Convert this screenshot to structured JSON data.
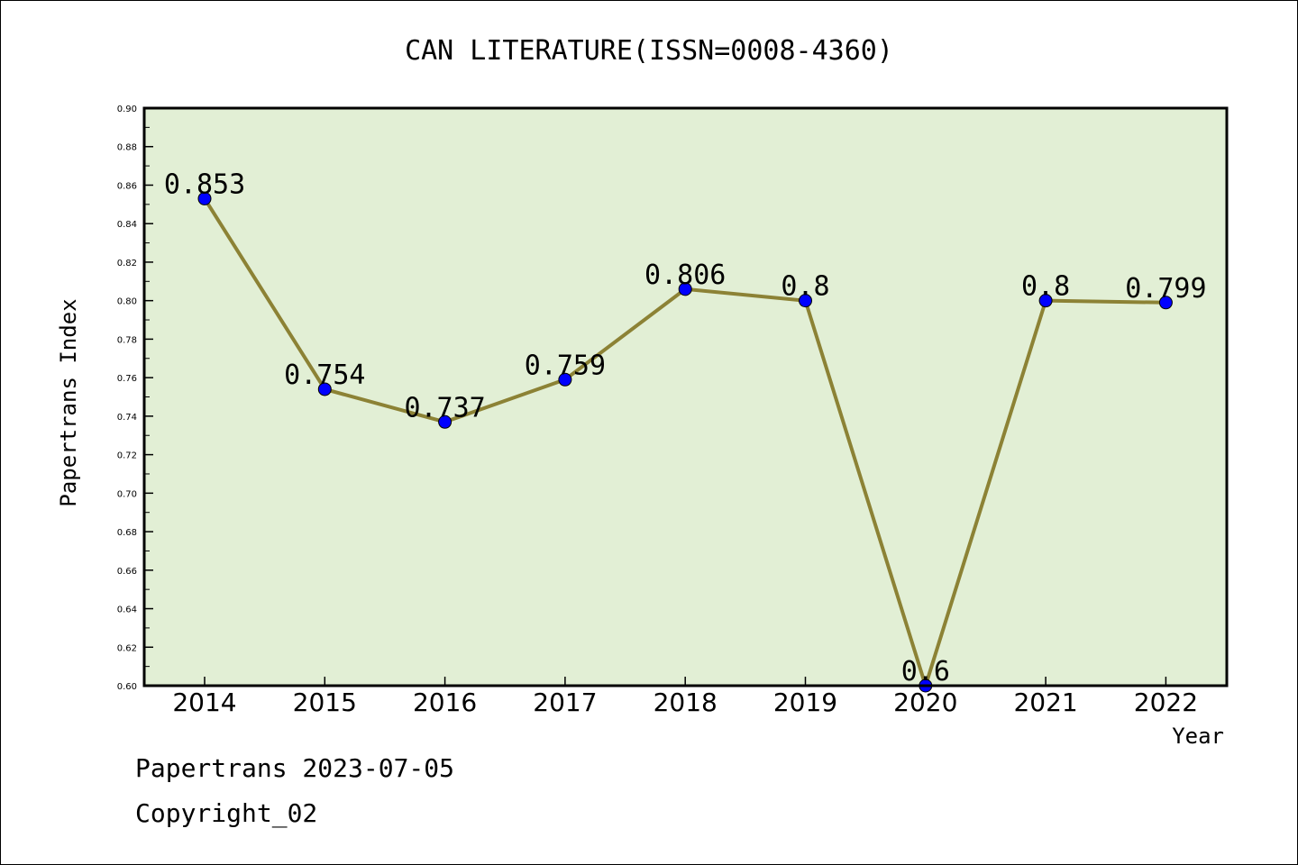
{
  "chart_data": {
    "type": "line",
    "title": "CAN LITERATURE(ISSN=0008-4360)",
    "xlabel": "Year",
    "ylabel": "Papertrans Index",
    "categories": [
      "2014",
      "2015",
      "2016",
      "2017",
      "2018",
      "2019",
      "2020",
      "2021",
      "2022"
    ],
    "series": [
      {
        "values": [
          0.853,
          0.754,
          0.737,
          0.759,
          0.806,
          0.8,
          0.6,
          0.8,
          0.799
        ],
        "labels": [
          "0.853",
          "0.754",
          "0.737",
          "0.759",
          "0.806",
          "0.8",
          "0.6",
          "0.8",
          "0.799"
        ]
      }
    ],
    "ylim": [
      0.6,
      0.9
    ],
    "yticks": [
      "0.60",
      "0.62",
      "0.64",
      "0.66",
      "0.68",
      "0.70",
      "0.72",
      "0.74",
      "0.76",
      "0.78",
      "0.80",
      "0.82",
      "0.84",
      "0.86",
      "0.88",
      "0.90"
    ],
    "grid": false,
    "legend": "none",
    "colors": {
      "plot_background": "#e2efd5",
      "line": "#8c8235",
      "marker": "#0000ff"
    }
  },
  "footer": {
    "source": "Papertrans 2023-07-05",
    "copyright": "Copyright_02"
  }
}
